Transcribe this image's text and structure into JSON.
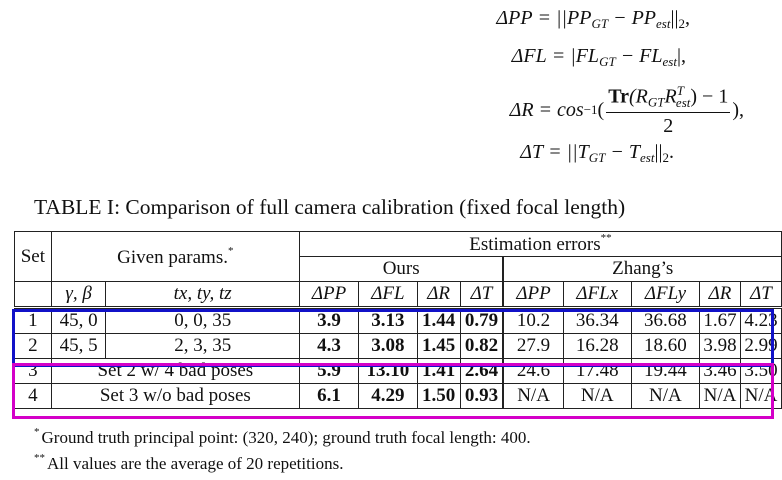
{
  "equations": {
    "pp": {
      "lhs": "ΔPP",
      "rhs": "= ||PP",
      "s1": "GT",
      "mid": " − PP",
      "s2": "est",
      "tail": "||",
      "t": "2",
      "end": ","
    },
    "fl": {
      "lhs": "ΔFL",
      "rhs": "= |FL",
      "s1": "GT",
      "mid": " − FL",
      "s2": "est",
      "tail": "|,"
    },
    "r": {
      "lhs": "ΔR = cos",
      "pow": "−1",
      "open": "(",
      "num_tr": "Tr",
      "num_body": "(R",
      "s1": "GT",
      "num_r": "R",
      "sup": "T",
      "s2": "est",
      "num_tail": ") − 1",
      "den": "2",
      "close": "),"
    },
    "t": {
      "lhs": "ΔT",
      "rhs": "= ||T",
      "s1": "GT",
      "mid": " − T",
      "s2": "est",
      "tail": "||",
      "t": "2",
      "end": "."
    }
  },
  "caption": "TABLE I: Comparison of full camera calibration (fixed focal length)",
  "table": {
    "h_set": "Set",
    "h_given": "Given params.",
    "h_given_mark": "*",
    "h_est": "Estimation errors",
    "h_est_mark": "**",
    "h_ours": "Ours",
    "h_zhang": "Zhang’s",
    "sub_gb": "γ, β",
    "sub_t": "tx, ty, tz",
    "sub_ours": [
      "ΔPP",
      "ΔFL",
      "ΔR",
      "ΔT"
    ],
    "sub_zhang": [
      "ΔPP",
      "ΔFLx",
      "ΔFLy",
      "ΔR",
      "ΔT"
    ],
    "rows": [
      {
        "set": "1",
        "gb": "45, 0",
        "t": "0, 0, 35",
        "ours": [
          "3.9",
          "3.13",
          "1.44",
          "0.79"
        ],
        "zhang": [
          "10.2",
          "36.34",
          "36.68",
          "1.67",
          "4.23"
        ]
      },
      {
        "set": "2",
        "gb": "45, 5",
        "t": "2, 3, 35",
        "ours": [
          "4.3",
          "3.08",
          "1.45",
          "0.82"
        ],
        "zhang": [
          "27.9",
          "16.28",
          "18.60",
          "3.98",
          "2.99"
        ]
      },
      {
        "set": "3",
        "given": "Set 2 w/ 4 bad poses",
        "ours": [
          "5.9",
          "13.10",
          "1.41",
          "2.64"
        ],
        "zhang": [
          "24.6",
          "17.48",
          "19.44",
          "3.46",
          "3.50"
        ]
      },
      {
        "set": "4",
        "given": "Set 3 w/o bad poses",
        "ours": [
          "6.1",
          "4.29",
          "1.50",
          "0.93"
        ],
        "zhang": [
          "N/A",
          "N/A",
          "N/A",
          "N/A",
          "N/A"
        ]
      }
    ]
  },
  "footnotes": [
    {
      "mark": "*",
      "text": "Ground truth principal point: (320, 240); ground truth focal length: 400."
    },
    {
      "mark": "**",
      "text": "All values are the average of 20 repetitions."
    }
  ],
  "colors": {
    "box_blue": "#1111c8",
    "box_magenta": "#d400c8"
  }
}
